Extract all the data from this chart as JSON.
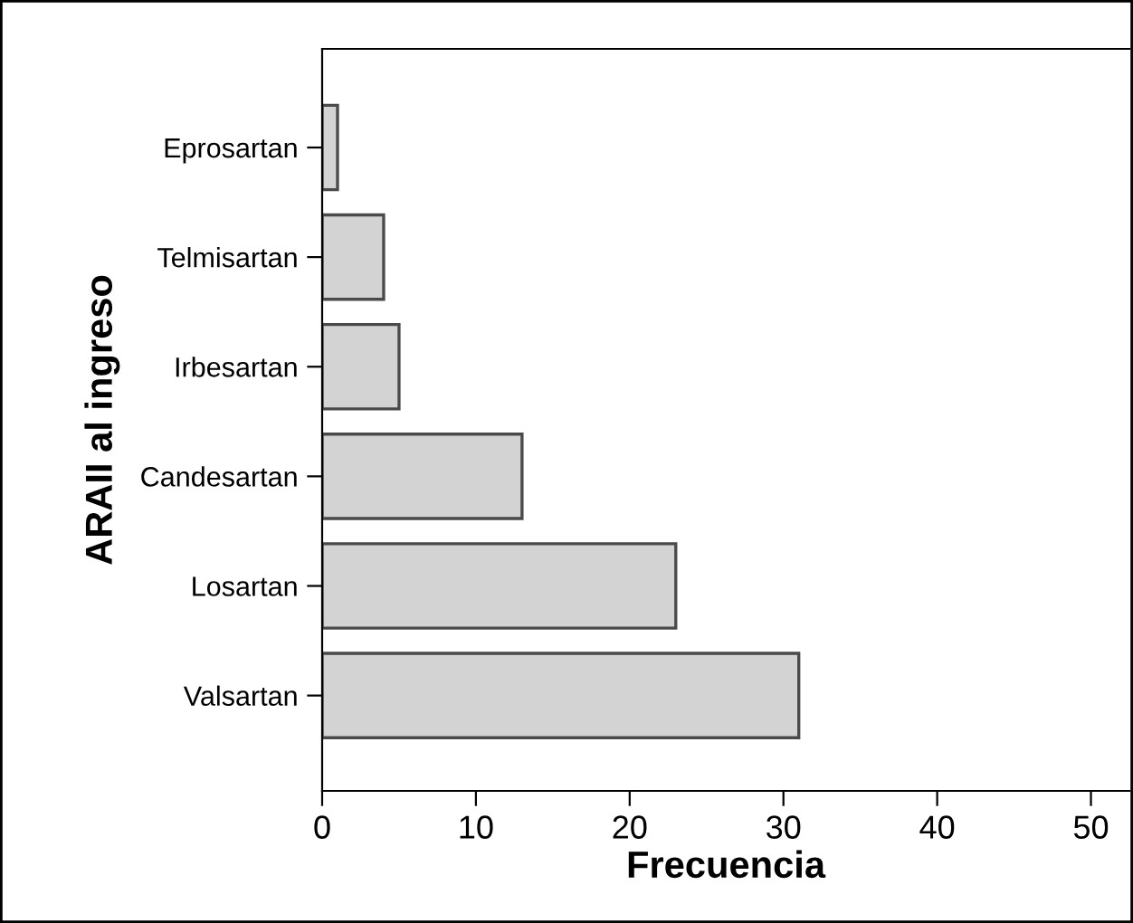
{
  "chart_data": {
    "type": "bar",
    "orientation": "horizontal",
    "xlabel": "Frecuencia",
    "ylabel": "ARAII al ingreso",
    "categories": [
      "Eprosartan",
      "Telmisartan",
      "Irbesartan",
      "Candesartan",
      "Losartan",
      "Valsartan"
    ],
    "values": [
      1,
      4,
      5,
      13,
      23,
      31
    ],
    "color": "#d3d3d3",
    "xlim": [
      0,
      52.5
    ],
    "xticks": [
      0,
      10,
      20,
      30,
      40,
      50
    ],
    "grid": false,
    "legend": false
  }
}
